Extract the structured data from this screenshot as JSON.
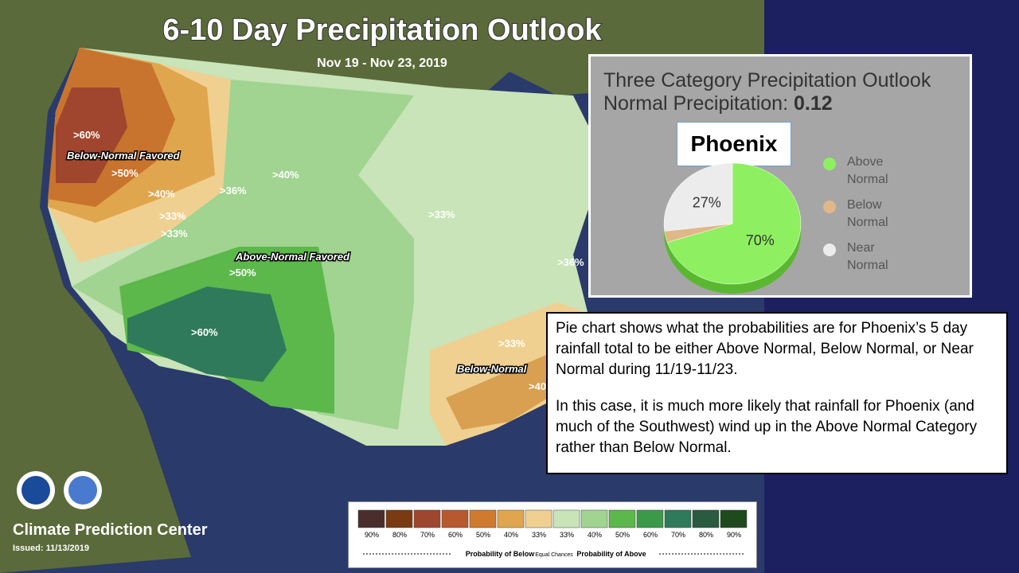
{
  "map": {
    "title": "6-10 Day Precipitation Outlook",
    "dates": "Nov 19 - Nov 23, 2019",
    "labels": [
      ">60%",
      "Below-Normal Favored",
      ">50%",
      ">40%",
      ">36%",
      ">33%",
      ">33%",
      ">40%",
      ">33%",
      "Above-Normal Favored",
      ">50%",
      ">60%",
      ">36%",
      ">33%",
      "Below-Normal",
      ">40"
    ]
  },
  "legend": {
    "ticks": [
      "90%",
      "80%",
      "70%",
      "60%",
      "50%",
      "40%",
      "33%",
      "33%",
      "40%",
      "50%",
      "60%",
      "70%",
      "80%",
      "90%"
    ],
    "colors": [
      "#4a2e2e",
      "#7a3a12",
      "#a0462e",
      "#b8582e",
      "#d07a2e",
      "#e0a64e",
      "#f0d090",
      "#c8e4b8",
      "#a0d490",
      "#5cb84a",
      "#3a9a4a",
      "#2e7a5a",
      "#2a5a40",
      "#1e4a1e"
    ],
    "below": "Probability of Below",
    "equal": "Equal Chances",
    "above": "Probability of Above"
  },
  "footer": {
    "center": "Climate Prediction Center",
    "issued": "Issued: 11/13/2019"
  },
  "chart_data": {
    "type": "pie",
    "title": "Three Category Precipitation Outlook",
    "subtitle": "Normal Precipitation:",
    "normal_precipitation": 0.12,
    "location": "Phoenix",
    "categories": [
      "Above Normal",
      "Below Normal",
      "Near Normal"
    ],
    "values": [
      70,
      3,
      27
    ],
    "value_labels": [
      "70%",
      null,
      "27%"
    ],
    "colors": [
      "#8ef060",
      "#e0b888",
      "#ececec"
    ]
  },
  "note": {
    "paragraphs": [
      "Pie chart shows what the probabilities are for Phoenix’s 5 day rainfall total to be either Above Normal, Below Normal, or Near Normal during 11/19-11/23.",
      "In this case, it is much more likely that rainfall for Phoenix (and much of the Southwest) wind up in the Above Normal Category rather than Below Normal."
    ]
  }
}
